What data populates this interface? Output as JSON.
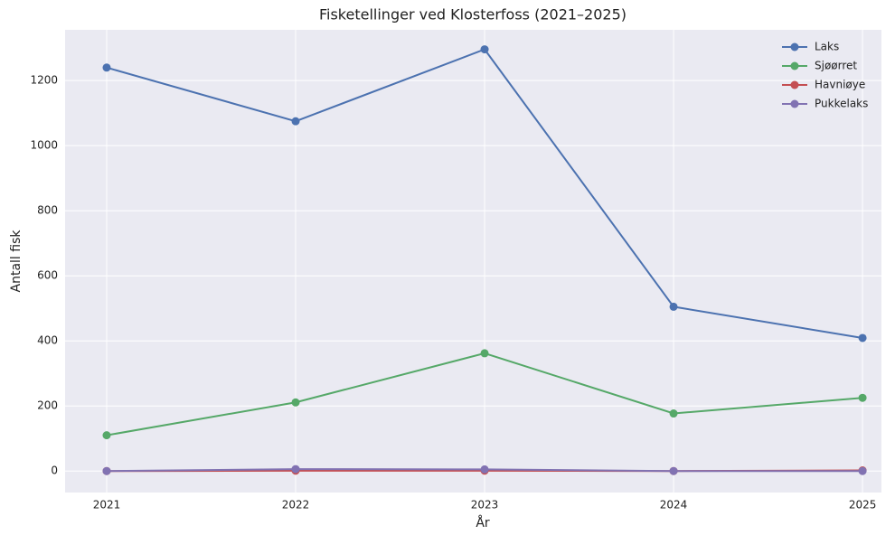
{
  "chart_data": {
    "type": "line",
    "title": "Fisketellinger ved Klosterfoss (2021–2025)",
    "xlabel": "År",
    "ylabel": "Antall fisk",
    "x": [
      2021,
      2022,
      2023,
      2024,
      2025
    ],
    "series": [
      {
        "name": "Laks",
        "color": "#4c72b0",
        "values": [
          1240,
          1075,
          1296,
          505,
          409
        ]
      },
      {
        "name": "Sjøørret",
        "color": "#55a868",
        "values": [
          110,
          211,
          362,
          177,
          225
        ]
      },
      {
        "name": "Havniøye",
        "color": "#c44e52",
        "values": [
          0,
          1,
          1,
          0,
          2
        ]
      },
      {
        "name": "Pukkelaks",
        "color": "#8172b2",
        "values": [
          0,
          6,
          5,
          0,
          0
        ]
      }
    ],
    "xlim": [
      2020.78,
      2025.1
    ],
    "xticks": [
      2021,
      2022,
      2023,
      2024,
      2025
    ],
    "ylim": [
      -66,
      1356
    ],
    "yticks": [
      0,
      200,
      400,
      600,
      800,
      1000,
      1200
    ],
    "grid": true,
    "legend": "upper right"
  }
}
